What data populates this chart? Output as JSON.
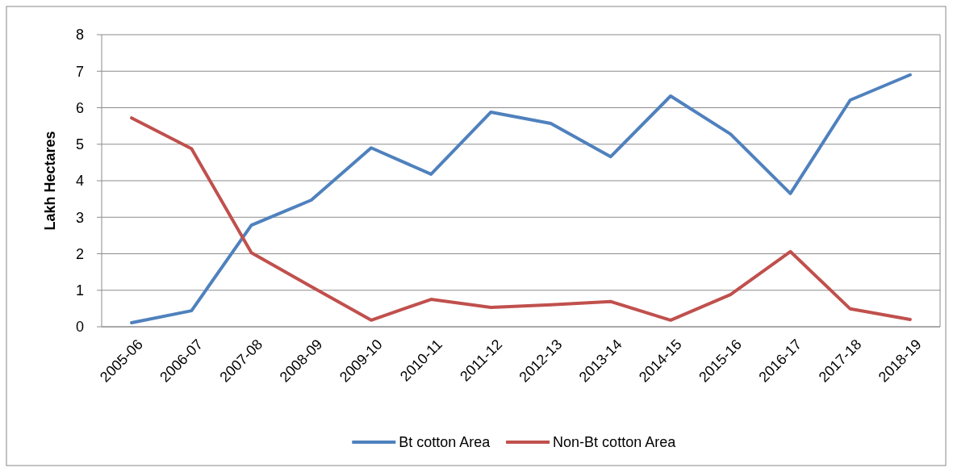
{
  "chart_data": {
    "type": "line",
    "ylabel": "Lakh Hectares",
    "categories": [
      "2005-06",
      "2006-07",
      "2007-08",
      "2008-09",
      "2009-10",
      "2010-11",
      "2011-12",
      "2012-13",
      "2013-14",
      "2014-15",
      "2015-16",
      "2016-17",
      "2017-18",
      "2018-19"
    ],
    "series": [
      {
        "name": "Bt cotton Area",
        "color": "#4f81bd",
        "values": [
          0.11,
          0.44,
          2.78,
          3.47,
          4.9,
          4.18,
          5.88,
          5.57,
          4.66,
          6.32,
          5.28,
          3.65,
          6.21,
          6.9
        ]
      },
      {
        "name": "Non-Bt cotton Area",
        "color": "#c0504d",
        "values": [
          5.72,
          4.88,
          2.03,
          1.1,
          0.18,
          0.75,
          0.53,
          0.6,
          0.69,
          0.18,
          0.88,
          2.06,
          0.49,
          0.2
        ]
      }
    ],
    "ylim": [
      0,
      8
    ],
    "yticks": [
      0,
      1,
      2,
      3,
      4,
      5,
      6,
      7,
      8
    ],
    "grid": "y",
    "legend": "bottom",
    "line_style": "solid"
  }
}
